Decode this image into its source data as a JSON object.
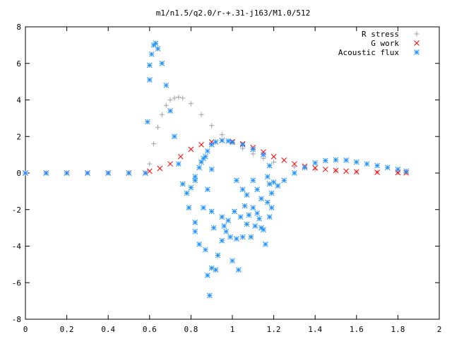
{
  "chart_data": {
    "type": "scatter",
    "title": "m1/n1.5/q2.0/r-+.31-j163/M1.0/512",
    "xlabel": "",
    "ylabel": "",
    "xlim": [
      0,
      2
    ],
    "ylim": [
      -8,
      8
    ],
    "xticks": [
      "0",
      "0.2",
      "0.4",
      "0.6",
      "0.8",
      "1",
      "1.2",
      "1.4",
      "1.6",
      "1.8",
      "2"
    ],
    "yticks": [
      "8",
      "6",
      "4",
      "2",
      "0",
      "-2",
      "-4",
      "-6",
      "-8"
    ],
    "legend_position": "top-right",
    "grid": false,
    "series": [
      {
        "name": "R stress",
        "marker": "+",
        "color": "#a0a0a0",
        "points": [
          [
            0,
            0
          ],
          [
            0.1,
            0
          ],
          [
            0.2,
            0
          ],
          [
            0.3,
            0
          ],
          [
            0.4,
            0
          ],
          [
            0.5,
            0
          ],
          [
            0.58,
            0
          ],
          [
            0.6,
            0.5
          ],
          [
            0.62,
            1.6
          ],
          [
            0.64,
            2.5
          ],
          [
            0.66,
            3.2
          ],
          [
            0.68,
            3.7
          ],
          [
            0.7,
            4.0
          ],
          [
            0.72,
            4.1
          ],
          [
            0.74,
            4.15
          ],
          [
            0.76,
            4.1
          ],
          [
            0.8,
            3.8
          ],
          [
            0.85,
            3.2
          ],
          [
            0.9,
            2.6
          ],
          [
            0.95,
            2.1
          ],
          [
            1.0,
            1.7
          ],
          [
            1.05,
            1.35
          ],
          [
            1.1,
            1.05
          ],
          [
            1.15,
            0.8
          ],
          [
            1.2,
            0.6
          ],
          [
            1.3,
            0.35
          ],
          [
            1.4,
            0.2
          ],
          [
            1.5,
            0.12
          ],
          [
            1.6,
            0.07
          ],
          [
            1.7,
            0.05
          ],
          [
            1.8,
            0.03
          ],
          [
            1.84,
            0.02
          ]
        ]
      },
      {
        "name": "G work",
        "marker": "x",
        "color": "#ff0000",
        "points": [
          [
            0,
            0
          ],
          [
            0.1,
            0
          ],
          [
            0.2,
            0
          ],
          [
            0.3,
            0
          ],
          [
            0.4,
            0
          ],
          [
            0.5,
            0
          ],
          [
            0.58,
            0
          ],
          [
            0.6,
            0.1
          ],
          [
            0.65,
            0.25
          ],
          [
            0.7,
            0.5
          ],
          [
            0.75,
            0.9
          ],
          [
            0.8,
            1.3
          ],
          [
            0.85,
            1.55
          ],
          [
            0.9,
            1.7
          ],
          [
            0.95,
            1.78
          ],
          [
            1.0,
            1.72
          ],
          [
            1.05,
            1.6
          ],
          [
            1.1,
            1.4
          ],
          [
            1.15,
            1.15
          ],
          [
            1.2,
            0.9
          ],
          [
            1.25,
            0.7
          ],
          [
            1.3,
            0.5
          ],
          [
            1.35,
            0.38
          ],
          [
            1.4,
            0.28
          ],
          [
            1.45,
            0.2
          ],
          [
            1.5,
            0.14
          ],
          [
            1.55,
            0.1
          ],
          [
            1.6,
            0.07
          ],
          [
            1.7,
            0.04
          ],
          [
            1.8,
            0.02
          ],
          [
            1.84,
            0.01
          ]
        ]
      },
      {
        "name": "Acoustic flux",
        "marker": "*",
        "color": "#1e90ff",
        "points": [
          [
            0,
            0
          ],
          [
            0.1,
            0
          ],
          [
            0.2,
            0
          ],
          [
            0.3,
            0
          ],
          [
            0.4,
            0
          ],
          [
            0.5,
            0
          ],
          [
            0.58,
            0
          ],
          [
            0.59,
            2.8
          ],
          [
            0.6,
            5.1
          ],
          [
            0.6,
            5.9
          ],
          [
            0.61,
            6.5
          ],
          [
            0.62,
            7.0
          ],
          [
            0.63,
            7.1
          ],
          [
            0.64,
            6.8
          ],
          [
            0.66,
            6.0
          ],
          [
            0.68,
            4.8
          ],
          [
            0.7,
            3.4
          ],
          [
            0.72,
            2.0
          ],
          [
            0.74,
            0.5
          ],
          [
            0.76,
            -0.6
          ],
          [
            0.78,
            -1.1
          ],
          [
            0.8,
            -0.8
          ],
          [
            0.82,
            -0.2
          ],
          [
            0.84,
            0.3
          ],
          [
            0.86,
            0.8
          ],
          [
            0.88,
            1.2
          ],
          [
            0.9,
            1.55
          ],
          [
            0.92,
            1.7
          ],
          [
            0.95,
            1.78
          ],
          [
            0.98,
            1.75
          ],
          [
            1.0,
            1.68
          ],
          [
            1.05,
            1.55
          ],
          [
            1.1,
            1.3
          ],
          [
            1.15,
            1.0
          ],
          [
            1.18,
            0.4
          ],
          [
            1.2,
            -0.5
          ],
          [
            1.22,
            -0.7
          ],
          [
            1.25,
            -0.4
          ],
          [
            1.3,
            0.0
          ],
          [
            1.35,
            0.3
          ],
          [
            1.4,
            0.55
          ],
          [
            1.45,
            0.68
          ],
          [
            1.5,
            0.72
          ],
          [
            1.55,
            0.7
          ],
          [
            1.6,
            0.6
          ],
          [
            1.65,
            0.5
          ],
          [
            1.7,
            0.4
          ],
          [
            1.75,
            0.3
          ],
          [
            1.8,
            0.2
          ],
          [
            1.84,
            0.1
          ],
          [
            0.79,
            -1.9
          ],
          [
            0.82,
            -2.7
          ],
          [
            0.82,
            -3.2
          ],
          [
            0.84,
            -3.9
          ],
          [
            0.86,
            -1.9
          ],
          [
            0.87,
            -4.2
          ],
          [
            0.88,
            -5.6
          ],
          [
            0.89,
            -6.7
          ],
          [
            0.9,
            -5.2
          ],
          [
            0.9,
            -2.1
          ],
          [
            0.91,
            -3.0
          ],
          [
            0.92,
            -5.3
          ],
          [
            0.93,
            -4.5
          ],
          [
            0.95,
            -2.4
          ],
          [
            0.95,
            -3.7
          ],
          [
            0.96,
            -2.9
          ],
          [
            0.97,
            -3.2
          ],
          [
            0.98,
            -2.6
          ],
          [
            0.99,
            -3.5
          ],
          [
            1.0,
            -4.8
          ],
          [
            1.01,
            -2.1
          ],
          [
            1.02,
            -3.6
          ],
          [
            1.03,
            -5.3
          ],
          [
            1.04,
            -2.4
          ],
          [
            1.05,
            -3.5
          ],
          [
            1.06,
            -1.8
          ],
          [
            1.07,
            -2.8
          ],
          [
            1.08,
            -2.3
          ],
          [
            1.09,
            -3.5
          ],
          [
            1.1,
            -1.9
          ],
          [
            1.11,
            -2.9
          ],
          [
            1.12,
            -2.2
          ],
          [
            1.13,
            -2.5
          ],
          [
            1.14,
            -3.0
          ],
          [
            1.15,
            -3.1
          ],
          [
            1.16,
            -3.9
          ],
          [
            1.17,
            -1.6
          ],
          [
            1.18,
            -2.4
          ],
          [
            1.19,
            -1.9
          ],
          [
            0.82,
            -0.4
          ],
          [
            0.85,
            0.6
          ],
          [
            0.87,
            0.9
          ],
          [
            0.88,
            -0.9
          ],
          [
            0.9,
            0.2
          ],
          [
            1.02,
            -0.4
          ],
          [
            1.05,
            -0.9
          ],
          [
            1.07,
            -1.2
          ],
          [
            1.1,
            -0.4
          ],
          [
            1.12,
            -0.9
          ],
          [
            1.14,
            -1.4
          ],
          [
            1.17,
            -0.2
          ],
          [
            1.18,
            -0.6
          ],
          [
            1.19,
            -1.1
          ]
        ]
      }
    ]
  }
}
